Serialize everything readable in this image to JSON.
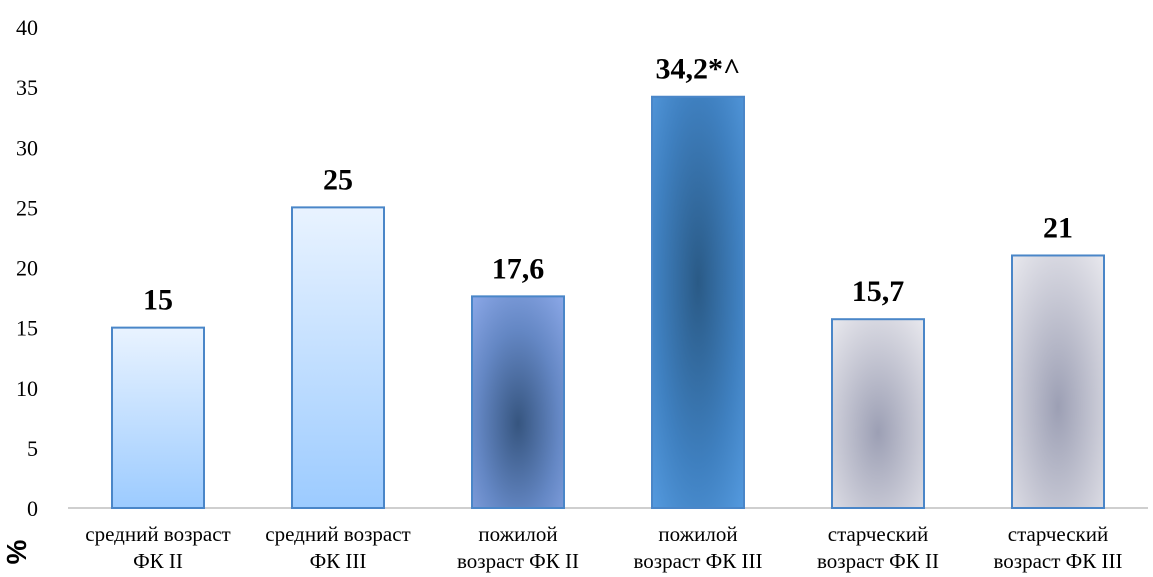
{
  "chart_data": {
    "type": "bar",
    "ylabel": "%",
    "ylim": [
      0,
      40
    ],
    "yticks": [
      "0",
      "5",
      "10",
      "15",
      "20",
      "25",
      "30",
      "35",
      "40"
    ],
    "grid": false,
    "categories": [
      [
        "средний возраст",
        "ФК II"
      ],
      [
        "средний возраст",
        "ФК III"
      ],
      [
        "пожилой",
        "возраст ФК II"
      ],
      [
        "пожилой",
        "возраст ФК III"
      ],
      [
        "старческий",
        "возраст ФК II"
      ],
      [
        "старческий",
        "возраст ФК III"
      ]
    ],
    "values": [
      15,
      25,
      17.6,
      34.2,
      15.7,
      21
    ],
    "data_labels": [
      "15",
      "25",
      "17,6",
      "34,2*^",
      "15,7",
      "21"
    ],
    "bar_styles": [
      "lightblue",
      "lightblue",
      "mediumblue",
      "deepblue",
      "gray",
      "gray"
    ],
    "colors": {
      "bar_border": "#4a86c8",
      "axis": "#bfbfbf"
    }
  }
}
